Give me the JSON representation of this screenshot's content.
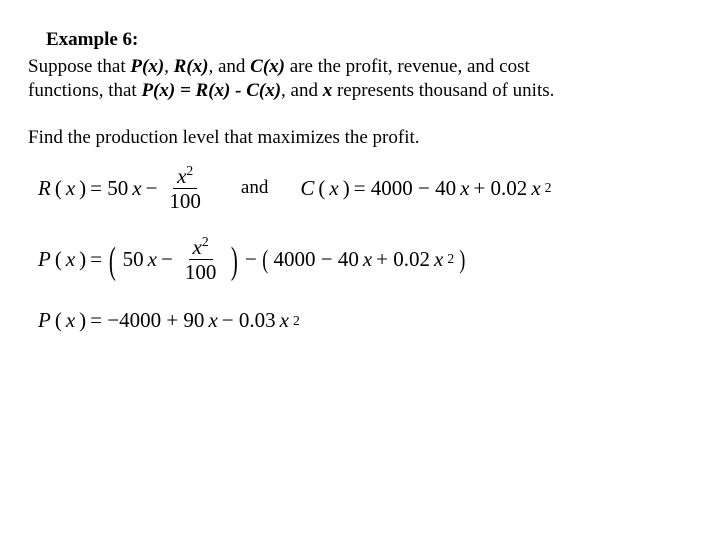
{
  "title": "Example 6:",
  "intro": {
    "pre1": "Suppose that ",
    "px": "P(x)",
    "comma1": ", ",
    "rx": "R(x)",
    "comma2": ", ",
    "and1": "and ",
    "cx": "C(x)",
    "post1": " are the profit, revenue, and cost",
    "line2a": "functions, that ",
    "pxeq": "P(x) = R(x) - C(x)",
    "line2b": ", and ",
    "xvar": "x",
    "line2c": " represents thousand of units."
  },
  "question": "Find the production level that maximizes the profit.",
  "eq1": {
    "lhs": "R",
    "lparen": "(",
    "xarg": "x",
    "rparen": ")",
    "eq": " = 50",
    "x1": "x",
    "minus": " − ",
    "frac_num_x": "x",
    "frac_num_sup": "2",
    "frac_den": "100",
    "and": "and",
    "c_lhs": "C",
    "c_expr_a": " = 4000 − 40",
    "c_x": "x",
    "c_expr_b": " + 0.02",
    "c_x2": "x",
    "c_sup": "2"
  },
  "eq2": {
    "lhs": "P",
    "lparen": "(",
    "xarg": "x",
    "rparen": ")",
    "eq": " = ",
    "bigL": "(",
    "t1": " 50",
    "x1": "x",
    "minus": " − ",
    "frac_num_x": "x",
    "frac_num_sup": "2",
    "frac_den": "100",
    "bigR": ")",
    "minus2": " − ",
    "mL": "(",
    "c_a": "4000 − 40",
    "c_x": "x",
    "c_b": " + 0.02",
    "c_x2": "x",
    "c_sup": "2",
    "mR": ")"
  },
  "eq3": {
    "lhs": "P",
    "lparen": "(",
    "xarg": "x",
    "rparen": ")",
    "eq": " = −4000 + 90",
    "x1": "x",
    "minus": " − 0.03",
    "x2": "x",
    "sup": "2"
  }
}
